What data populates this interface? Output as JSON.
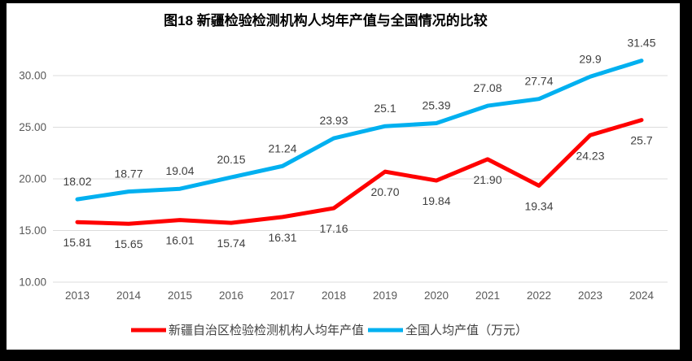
{
  "chart_data": {
    "type": "line",
    "title": "图18  新疆检验检测机构人均年产值与全国情况的比较",
    "categories": [
      "2013",
      "2014",
      "2015",
      "2016",
      "2017",
      "2018",
      "2019",
      "2020",
      "2021",
      "2022",
      "2023",
      "2024"
    ],
    "y_ticks": [
      "10.00",
      "15.00",
      "20.00",
      "25.00",
      "30.00"
    ],
    "ylim": [
      10,
      32.5
    ],
    "grid": true,
    "legend_position": "bottom",
    "series": [
      {
        "id": "xinjiang",
        "name": "新疆自治区检验检测机构人均年产值",
        "color": "#ff0000",
        "label_position": "below",
        "values": [
          15.81,
          15.65,
          16.01,
          15.74,
          16.31,
          17.16,
          20.7,
          19.84,
          21.9,
          19.34,
          24.23,
          25.7
        ],
        "labels": [
          "15.81",
          "15.65",
          "16.01",
          "15.74",
          "16.31",
          "17.16",
          "20.70",
          "19.84",
          "21.90",
          "19.34",
          "24.23",
          "25.7"
        ]
      },
      {
        "id": "national",
        "name": "全国人均产值（万元）",
        "color": "#00b0f0",
        "label_position": "above",
        "values": [
          18.02,
          18.77,
          19.04,
          20.15,
          21.24,
          23.93,
          25.1,
          25.39,
          27.08,
          27.74,
          29.9,
          31.45
        ],
        "labels": [
          "18.02",
          "18.77",
          "19.04",
          "20.15",
          "21.24",
          "23.93",
          "25.1",
          "25.39",
          "27.08",
          "27.74",
          "29.9",
          "31.45"
        ]
      }
    ],
    "colors": {
      "gridline": "#dcdcdc",
      "axis_label": "#595959",
      "data_label": "#3f3f3f",
      "title": "#000000",
      "frame": "#000000"
    }
  }
}
